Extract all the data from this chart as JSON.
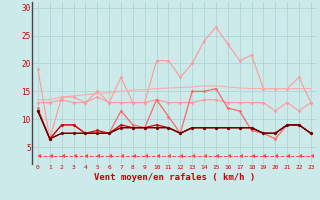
{
  "x": [
    0,
    1,
    2,
    3,
    4,
    5,
    6,
    7,
    8,
    9,
    10,
    11,
    12,
    13,
    14,
    15,
    16,
    17,
    18,
    19,
    20,
    21,
    22,
    23
  ],
  "background_color": "#cceaea",
  "grid_color": "#aacfcf",
  "xlabel": "Vent moyen/en rafales ( km/h )",
  "xlabel_color": "#cc0000",
  "xlabel_fontsize": 6.5,
  "ylim": [
    2,
    31
  ],
  "yticks": [
    5,
    10,
    15,
    20,
    25,
    30
  ],
  "series": [
    {
      "name": "s1_light",
      "color": "#ff9999",
      "lw": 0.8,
      "marker": "D",
      "markersize": 1.5,
      "linestyle": "-",
      "values": [
        19,
        6.5,
        14,
        14,
        13,
        15,
        13,
        17.5,
        13,
        13,
        20.5,
        20.5,
        17.5,
        20,
        24,
        26.5,
        23.5,
        20.5,
        21.5,
        15.5,
        15.5,
        15.5,
        17.5,
        13
      ]
    },
    {
      "name": "s2_medium_light",
      "color": "#ff9999",
      "lw": 0.8,
      "marker": "D",
      "markersize": 1.5,
      "linestyle": "-",
      "values": [
        13,
        13,
        13.5,
        13,
        13,
        14,
        13,
        13,
        13,
        13,
        13.5,
        13,
        13,
        13,
        13.5,
        13.5,
        13,
        13,
        13,
        13,
        11.5,
        13,
        11.5,
        13
      ]
    },
    {
      "name": "s3_medium",
      "color": "#ff6666",
      "lw": 0.9,
      "marker": "D",
      "markersize": 1.5,
      "linestyle": "-",
      "values": [
        12,
        6.5,
        9,
        9,
        7.5,
        7.5,
        7.5,
        11.5,
        9,
        8.5,
        13.5,
        10.5,
        7.5,
        15,
        15,
        15.5,
        12,
        11.5,
        8,
        7.5,
        6.5,
        9,
        9,
        7.5
      ]
    },
    {
      "name": "s4_dark1",
      "color": "#cc0000",
      "lw": 0.9,
      "marker": "D",
      "markersize": 1.5,
      "linestyle": "-",
      "values": [
        11.5,
        6.5,
        9,
        9,
        7.5,
        8,
        7.5,
        9,
        8.5,
        8.5,
        9,
        8.5,
        7.5,
        8.5,
        8.5,
        8.5,
        8.5,
        8.5,
        8.5,
        7.5,
        7.5,
        9,
        9,
        7.5
      ]
    },
    {
      "name": "s5_dark2",
      "color": "#990000",
      "lw": 0.9,
      "marker": "D",
      "markersize": 1.5,
      "linestyle": "-",
      "values": [
        11.5,
        6.5,
        7.5,
        7.5,
        7.5,
        7.5,
        7.5,
        8.5,
        8.5,
        8.5,
        8.5,
        8.5,
        7.5,
        8.5,
        8.5,
        8.5,
        8.5,
        8.5,
        8.5,
        7.5,
        7.5,
        9,
        9,
        7.5
      ]
    },
    {
      "name": "s6_darkest",
      "color": "#660000",
      "lw": 0.8,
      "marker": "D",
      "markersize": 1.5,
      "linestyle": "-",
      "values": [
        11.5,
        6.5,
        7.5,
        7.5,
        7.5,
        7.5,
        7.5,
        8.5,
        8.5,
        8.5,
        8.5,
        8.5,
        7.5,
        8.5,
        8.5,
        8.5,
        8.5,
        8.5,
        8.5,
        7.5,
        7.5,
        9,
        9,
        7.5
      ]
    },
    {
      "name": "s7_dashed",
      "color": "#ff4444",
      "lw": 0.7,
      "marker": 4,
      "markersize": 3,
      "linestyle": "--",
      "values": [
        3.5,
        3.5,
        3.5,
        3.5,
        3.5,
        3.5,
        3.5,
        3.5,
        3.5,
        3.5,
        3.5,
        3.5,
        3.5,
        3.5,
        3.5,
        3.5,
        3.5,
        3.5,
        3.5,
        3.5,
        3.5,
        3.5,
        3.5,
        3.5
      ]
    },
    {
      "name": "s8_trend",
      "color": "#ffaaaa",
      "lw": 0.8,
      "marker": null,
      "linestyle": "-",
      "values": [
        13.5,
        13.5,
        14.0,
        14.2,
        14.4,
        14.6,
        14.8,
        15.0,
        15.2,
        15.3,
        15.5,
        15.6,
        15.7,
        15.8,
        16.0,
        16.0,
        15.8,
        15.6,
        15.5,
        15.5,
        15.5,
        15.5,
        15.5,
        15.5
      ]
    }
  ]
}
